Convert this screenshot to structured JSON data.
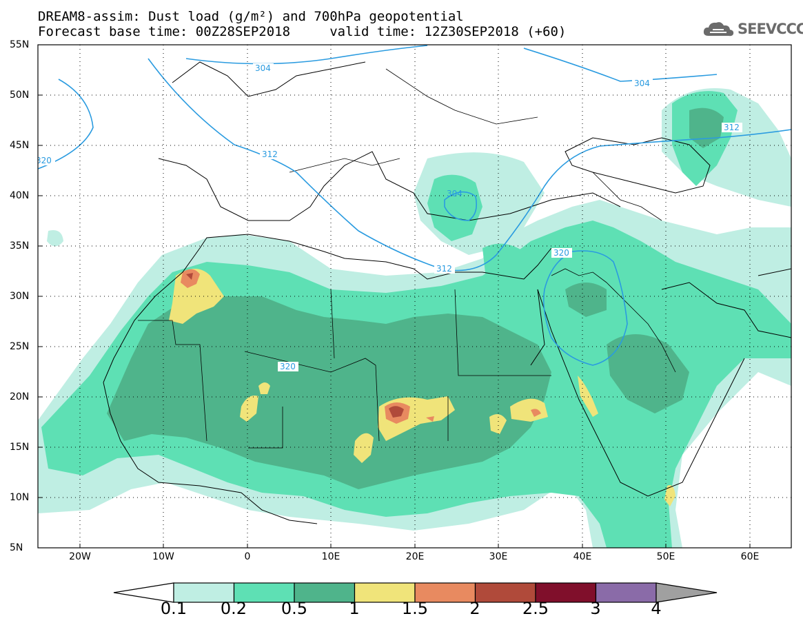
{
  "title": {
    "line1": "DREAM8-assim: Dust load (g/m²) and 700hPa geopotential",
    "line2": "Forecast base time: 00Z28SEP2018     valid time: 12Z30SEP2018 (+60)"
  },
  "logo": {
    "text": "SEEVCCC",
    "icon": "cloud-icon"
  },
  "axes": {
    "lat_labels": [
      "55N",
      "50N",
      "45N",
      "40N",
      "35N",
      "30N",
      "25N",
      "20N",
      "15N",
      "10N",
      "5N"
    ],
    "lon_labels": [
      "20W",
      "10W",
      "0",
      "10E",
      "20E",
      "30E",
      "40E",
      "50E",
      "60E"
    ],
    "lat_range": [
      5,
      55
    ],
    "lon_range": [
      -25,
      65
    ],
    "gridlines": "dotted"
  },
  "contour_labels": [
    "304",
    "304",
    "312",
    "312",
    "320",
    "312",
    "320",
    "320",
    "304"
  ],
  "colorbar": {
    "levels": [
      "0.1",
      "0.2",
      "0.5",
      "1",
      "1.5",
      "2",
      "2.5",
      "3",
      "4"
    ],
    "colors": [
      "#bfeee3",
      "#5ee0b4",
      "#4fb48b",
      "#f0e47a",
      "#e88a60",
      "#b04a3a",
      "#800f2b",
      "#8a6ba8"
    ],
    "extend_colors": [
      "#ffffff",
      "#a0a0a0"
    ]
  },
  "colors": {
    "coast": "#000000",
    "contour": "#2a9be0",
    "low": "#bfeee3",
    "mid": "#5ee0b4",
    "high": "#4fb48b",
    "peak1": "#f0e47a",
    "peak2": "#e88a60",
    "peak3": "#b04a3a"
  }
}
